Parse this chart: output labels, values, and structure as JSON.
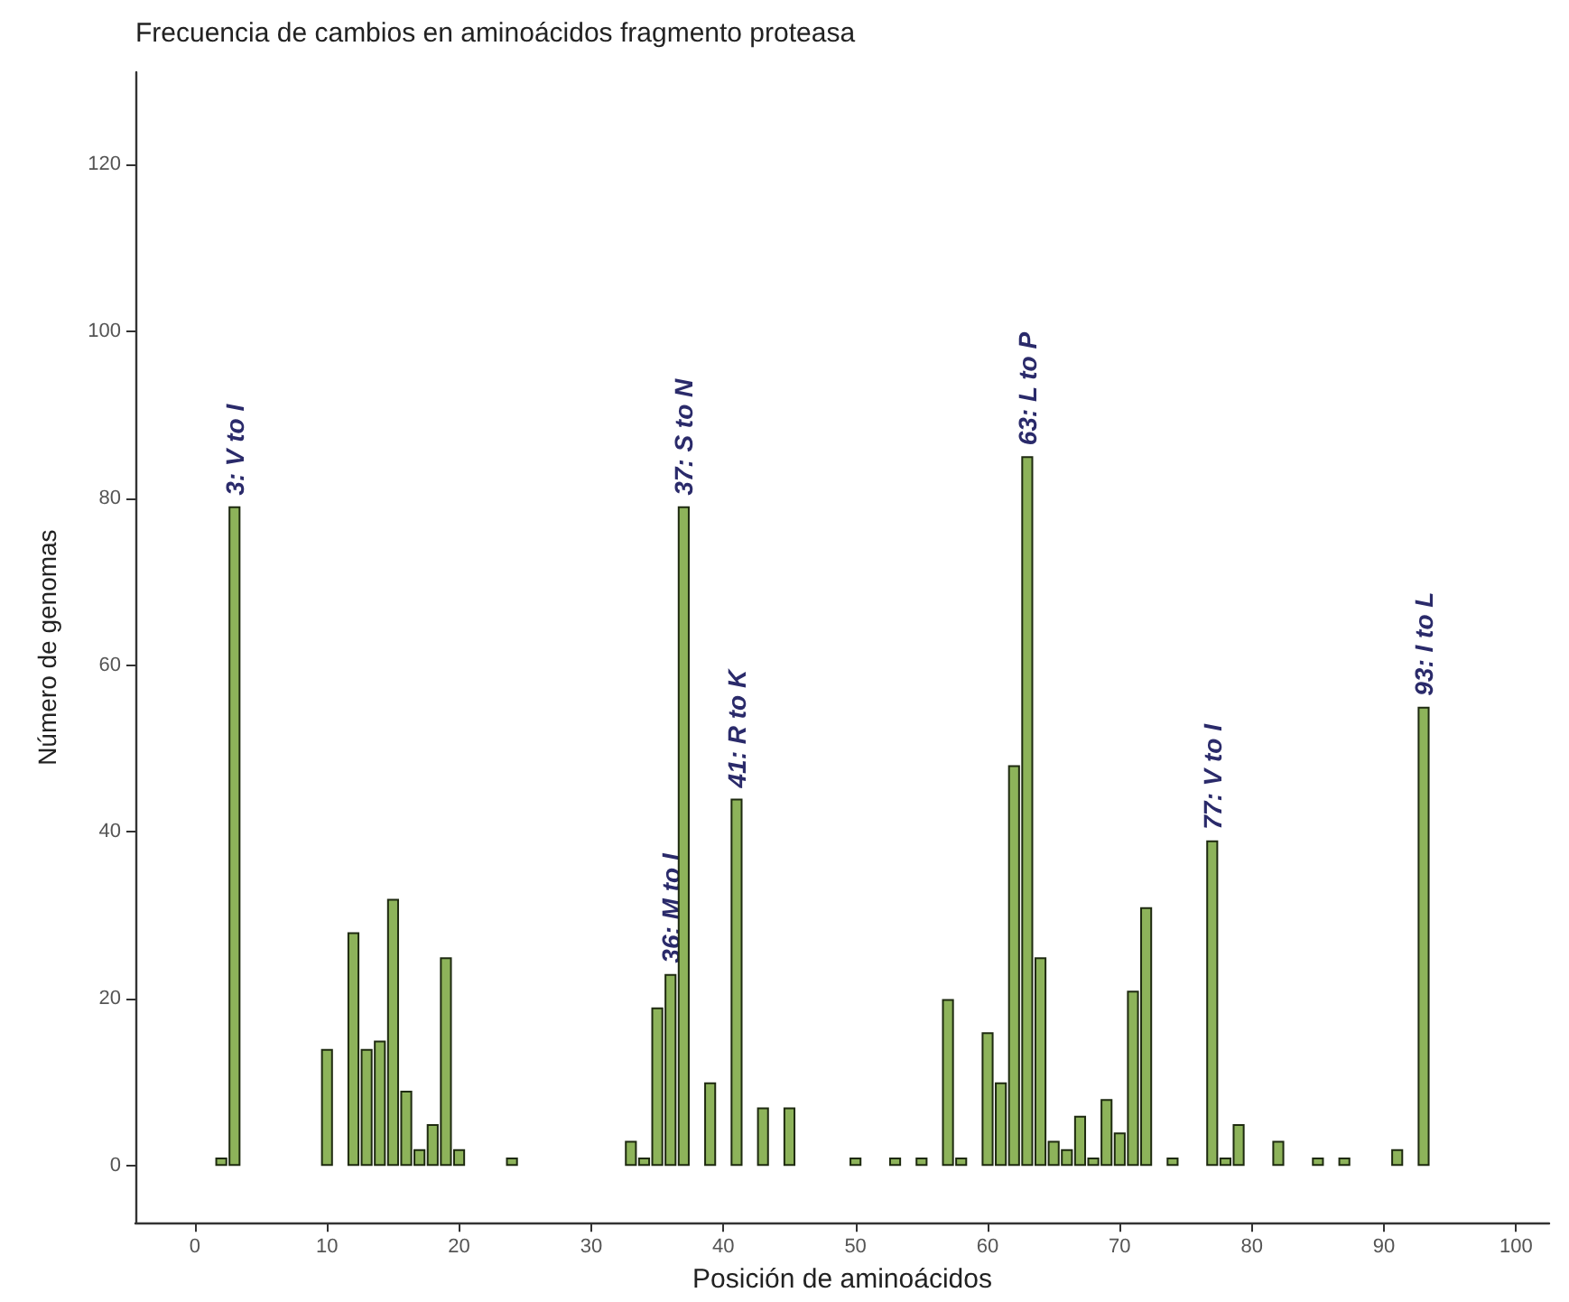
{
  "chart_data": {
    "type": "bar",
    "title": "Frecuencia de cambios en aminoácidos fragmento proteasa",
    "xlabel": "Posición de aminoácidos",
    "ylabel": "Número de genomas",
    "x": [
      2,
      3,
      10,
      12,
      13,
      14,
      15,
      16,
      17,
      18,
      19,
      20,
      24,
      33,
      34,
      35,
      36,
      37,
      39,
      41,
      43,
      45,
      50,
      53,
      55,
      57,
      58,
      60,
      61,
      62,
      63,
      64,
      65,
      66,
      67,
      68,
      69,
      70,
      71,
      72,
      74,
      77,
      78,
      79,
      82,
      85,
      87,
      91,
      93
    ],
    "values": [
      1,
      79,
      14,
      28,
      14,
      15,
      32,
      9,
      2,
      5,
      25,
      2,
      1,
      3,
      1,
      19,
      23,
      79,
      10,
      44,
      7,
      7,
      1,
      1,
      1,
      20,
      1,
      16,
      10,
      48,
      85,
      25,
      3,
      2,
      6,
      1,
      8,
      4,
      21,
      31,
      1,
      39,
      1,
      5,
      3,
      1,
      1,
      2,
      55
    ],
    "color": "#8db35a",
    "xlim": [
      -4.5,
      102.5
    ],
    "xticks": [
      0,
      10,
      20,
      30,
      40,
      50,
      60,
      70,
      80,
      90,
      100
    ],
    "ylim": [
      -6.8,
      131
    ],
    "yticks": [
      0,
      20,
      40,
      60,
      80,
      100,
      120
    ],
    "grid": false,
    "annotations": [
      {
        "text": "3: V to I",
        "x": 3,
        "y": 79
      },
      {
        "text": "36: M to I",
        "x": 36,
        "y": 23
      },
      {
        "text": "37: S to N",
        "x": 37,
        "y": 79
      },
      {
        "text": "41: R to K",
        "x": 41,
        "y": 44
      },
      {
        "text": "63: L to P",
        "x": 63,
        "y": 85
      },
      {
        "text": "77: V to I",
        "x": 77,
        "y": 39
      },
      {
        "text": "93: I to L",
        "x": 93,
        "y": 55
      }
    ]
  }
}
